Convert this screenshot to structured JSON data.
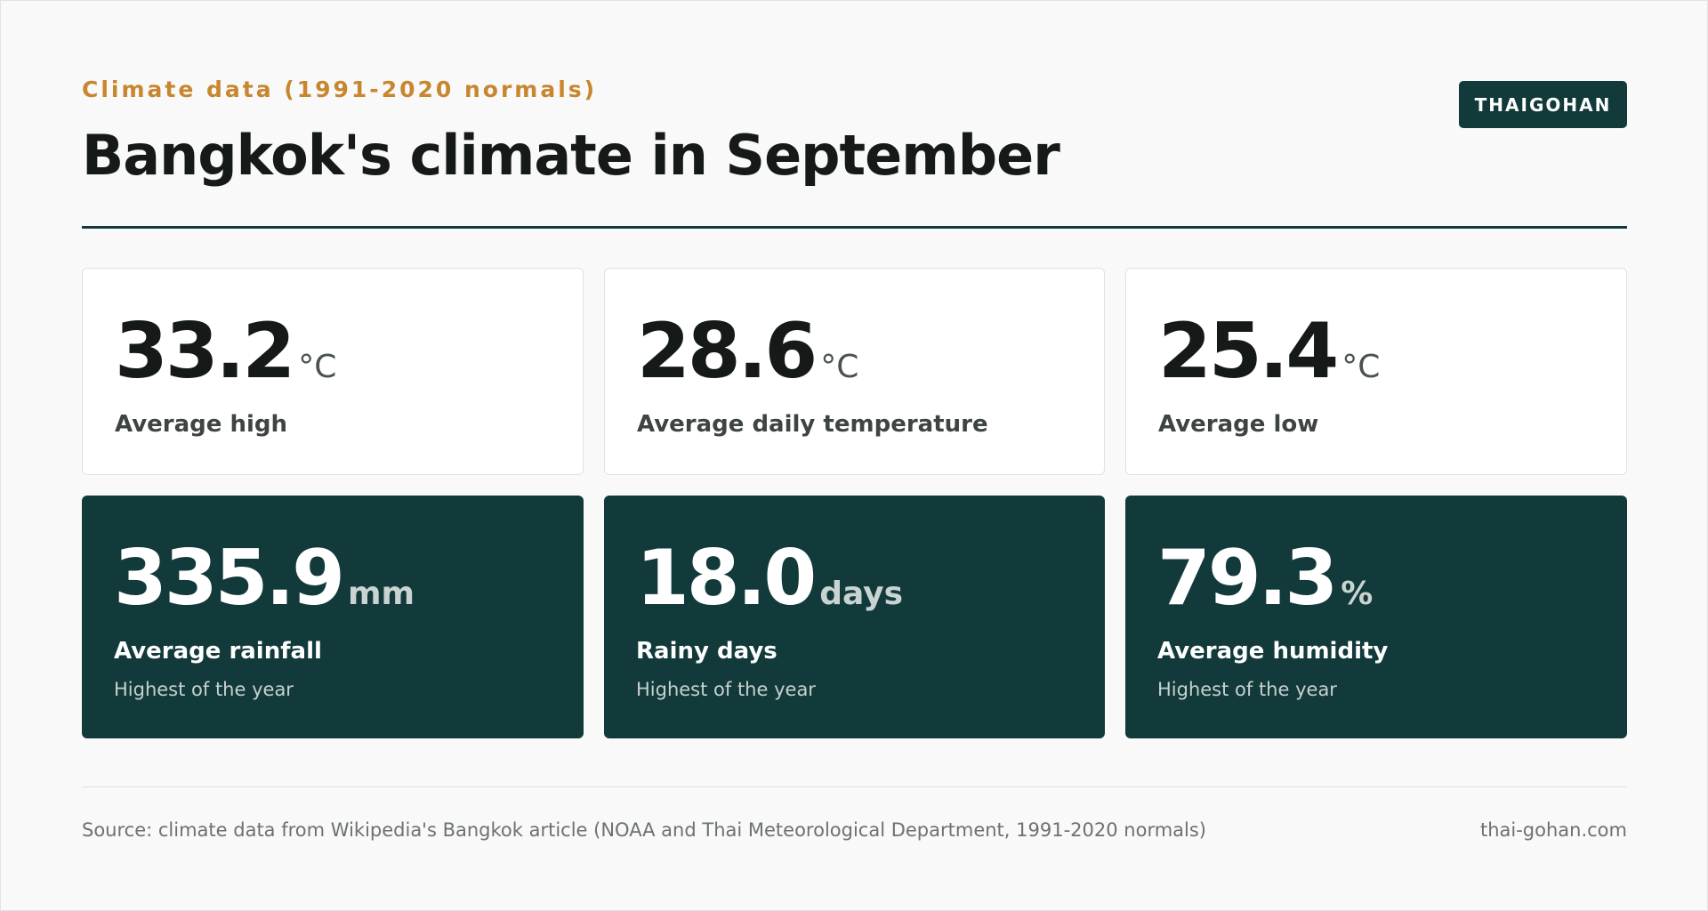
{
  "header": {
    "eyebrow": "Climate data (1991-2020 normals)",
    "title": "Bangkok's climate in September",
    "brand": "THAIGOHAN"
  },
  "cards_top": [
    {
      "value": "33.2",
      "unit": "°C",
      "label": "Average high"
    },
    {
      "value": "28.6",
      "unit": "°C",
      "label": "Average daily temperature"
    },
    {
      "value": "25.4",
      "unit": "°C",
      "label": "Average low"
    }
  ],
  "cards_bottom": [
    {
      "value": "335.9",
      "unit": "mm",
      "label": "Average rainfall",
      "note": "Highest of the year"
    },
    {
      "value": "18.0",
      "unit": "days",
      "label": "Rainy days",
      "note": "Highest of the year"
    },
    {
      "value": "79.3",
      "unit": "%",
      "label": "Average humidity",
      "note": "Highest of the year"
    }
  ],
  "footer": {
    "source": "Source: climate data from Wikipedia's Bangkok article (NOAA and Thai Meteorological Department, 1991-2020 normals)",
    "site": "thai-gohan.com"
  },
  "colors": {
    "accent": "#c8862e",
    "brand_dark": "#123a3a",
    "background": "#f8f9f8"
  }
}
